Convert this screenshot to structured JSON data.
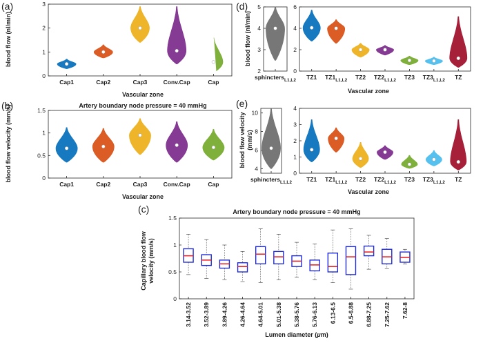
{
  "labels": {
    "a": "(a)",
    "b": "(b)",
    "c": "(c)",
    "d": "(d)",
    "e": "(e)"
  },
  "colors": {
    "blue": "#0b72bd",
    "orange": "#d95319",
    "gold": "#edb120",
    "purple": "#7e2f8e",
    "green": "#77ac30",
    "cyan": "#4dbeee",
    "darkred": "#a2142f",
    "gray": "#707070",
    "box": "#1f2bd1",
    "boxmedian": "#e3262c"
  },
  "chart_data": [
    {
      "id": "a",
      "type": "violin",
      "title": "",
      "xlabel": "Vascular zone",
      "ylabel": "blood flow (nl/min)",
      "ylim": [
        0,
        3
      ],
      "yticks": [
        "0",
        "1",
        "2",
        "3"
      ],
      "categories": [
        "Cap1",
        "Cap2",
        "Cap3",
        "Conv.Cap",
        "Cap"
      ],
      "medians": [
        0.5,
        1.0,
        2.0,
        1.05,
        0.58
      ],
      "ranges": [
        [
          0.3,
          0.7
        ],
        [
          0.75,
          1.3
        ],
        [
          1.4,
          2.9
        ],
        [
          0.5,
          2.9
        ],
        [
          0.15,
          1.6
        ]
      ]
    },
    {
      "id": "b",
      "type": "violin",
      "title": "Artery boundary node pressure = 40 mmHg",
      "xlabel": "Vascular zone",
      "ylabel": "blood flow velocity (mm/s)",
      "ylim": [
        0,
        1.5
      ],
      "yticks": [
        "0",
        "0.5",
        "1",
        "1.5"
      ],
      "categories": [
        "Cap1",
        "Cap2",
        "Cap3",
        "Conv.Cap",
        "Cap"
      ],
      "medians": [
        0.66,
        0.7,
        0.95,
        0.73,
        0.68
      ],
      "ranges": [
        [
          0.35,
          1.12
        ],
        [
          0.35,
          1.1
        ],
        [
          0.52,
          1.32
        ],
        [
          0.35,
          1.25
        ],
        [
          0.4,
          1.08
        ]
      ]
    },
    {
      "id": "c",
      "type": "box",
      "title": "Artery boundary node pressure = 40 mmHg",
      "xlabel": "Lumen diameter (μm)",
      "ylabel": "Capillary blood flow velocity (mm/s)",
      "ylim": [
        0,
        1.5
      ],
      "yticks": [
        "0",
        "0.5",
        "1",
        "1.5"
      ],
      "categories": [
        "3.14-3.52",
        "3.52-3.89",
        "3.89-4.26",
        "4.26-4.64",
        "4.64-5.01",
        "5.01-5.38",
        "5.38-5.76",
        "5.76-6.13",
        "6.13-6.5",
        "6.5-6.88",
        "6.88-7.25",
        "7.25-7.62",
        "7.62-8"
      ],
      "medians": [
        0.8,
        0.72,
        0.65,
        0.6,
        0.83,
        0.78,
        0.7,
        0.63,
        0.6,
        0.78,
        0.87,
        0.78,
        0.77
      ],
      "q1": [
        0.68,
        0.62,
        0.57,
        0.5,
        0.65,
        0.65,
        0.6,
        0.52,
        0.5,
        0.45,
        0.8,
        0.65,
        0.68
      ],
      "q3": [
        0.93,
        0.82,
        0.72,
        0.67,
        0.97,
        0.88,
        0.8,
        0.72,
        0.85,
        0.97,
        0.98,
        0.92,
        0.87
      ],
      "lower_whisker": [
        0.45,
        0.38,
        0.35,
        0.32,
        0.3,
        0.35,
        0.4,
        0.35,
        0.3,
        0.18,
        0.55,
        0.56,
        0.65
      ],
      "upper_whisker": [
        1.2,
        1.1,
        1.0,
        0.88,
        1.3,
        1.2,
        1.05,
        1.02,
        1.28,
        1.3,
        1.18,
        1.12,
        0.92
      ]
    },
    {
      "id": "d-left",
      "type": "violin",
      "title": "",
      "xlabel": "",
      "ylabel": "blood flow (nl/min)",
      "ylim": [
        2,
        5
      ],
      "yticks": [
        "2",
        "3",
        "4",
        "5"
      ],
      "categories": [
        "sphincters",
        "L1,L2"
      ],
      "medians": [
        4.0
      ],
      "ranges": [
        [
          2.5,
          5.0
        ]
      ]
    },
    {
      "id": "d-right",
      "type": "violin",
      "title": "",
      "xlabel": "Vascular zone",
      "ylabel": "",
      "ylim": [
        0,
        6
      ],
      "yticks": [
        "0",
        "2",
        "4",
        "6"
      ],
      "categories": [
        [
          "TZ1",
          ""
        ],
        [
          "TZ1",
          "L1,L2"
        ],
        [
          "TZ2",
          ""
        ],
        [
          "TZ2",
          "L1,L2"
        ],
        [
          "TZ3",
          ""
        ],
        [
          "TZ3",
          "L1,L2"
        ],
        [
          "TZ",
          ""
        ]
      ],
      "medians": [
        4.05,
        4.0,
        2.0,
        2.0,
        1.0,
        0.95,
        1.2
      ],
      "ranges": [
        [
          2.8,
          5.7
        ],
        [
          2.6,
          4.8
        ],
        [
          1.3,
          2.6
        ],
        [
          1.5,
          2.4
        ],
        [
          0.6,
          1.4
        ],
        [
          0.6,
          1.3
        ],
        [
          0.35,
          5.1
        ]
      ]
    },
    {
      "id": "e-left",
      "type": "violin",
      "title": "",
      "xlabel": "",
      "ylabel": "blood flow velocity (mm/s)",
      "ylim": [
        3.5,
        10.5
      ],
      "yticks": [
        "4",
        "6",
        "8",
        "10"
      ],
      "categories": [
        "sphincters",
        "L1,L2"
      ],
      "medians": [
        6.2
      ],
      "ranges": [
        [
          4.0,
          10.5
        ]
      ]
    },
    {
      "id": "e-right",
      "type": "violin",
      "title": "",
      "xlabel": "Vascular zone",
      "ylabel": "",
      "ylim": [
        0,
        4
      ],
      "yticks": [
        "0",
        "1",
        "2",
        "3",
        "4"
      ],
      "categories": [
        [
          "TZ1",
          ""
        ],
        [
          "TZ1",
          "L1,L2"
        ],
        [
          "TZ2",
          ""
        ],
        [
          "TZ2",
          "L1,L2"
        ],
        [
          "TZ3",
          ""
        ],
        [
          "TZ3",
          "L1,L2"
        ],
        [
          "TZ",
          ""
        ]
      ],
      "medians": [
        1.45,
        2.15,
        0.9,
        1.3,
        0.55,
        0.85,
        0.7
      ],
      "ranges": [
        [
          0.7,
          3.3
        ],
        [
          1.3,
          2.8
        ],
        [
          0.35,
          1.9
        ],
        [
          0.85,
          1.7
        ],
        [
          0.3,
          1.1
        ],
        [
          0.45,
          1.4
        ],
        [
          0.2,
          3.3
        ]
      ]
    }
  ]
}
